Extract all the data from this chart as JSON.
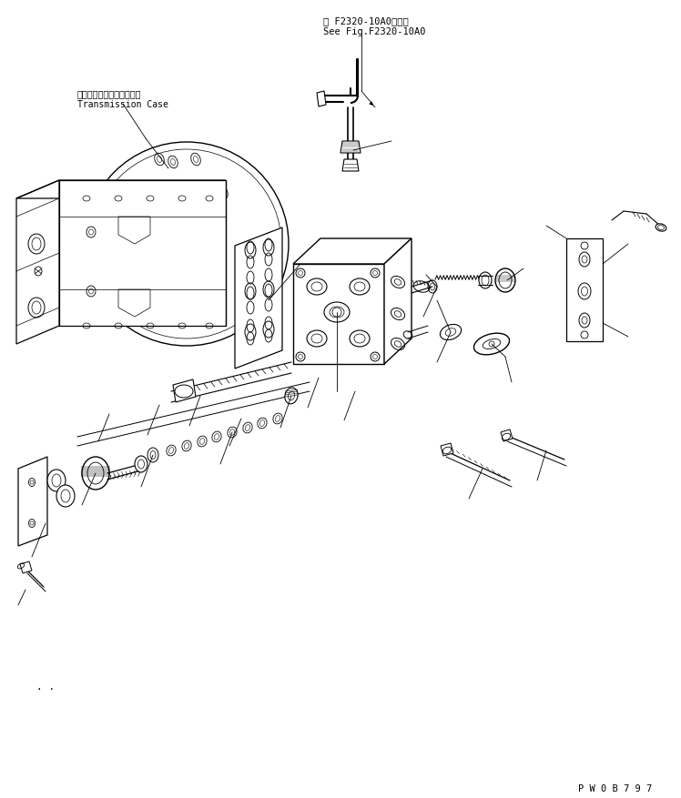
{
  "bg_color": "#ffffff",
  "lc": "#000000",
  "title_jp": "第 F2320-10A0図参照",
  "title_en": "See Fig.F2320-10A0",
  "label_jp": "トランスミッションケース",
  "label_en": "Transmission Case",
  "watermark": "P W 0 B 7 9 7",
  "figsize": [
    7.48,
    8.77
  ],
  "dpi": 100
}
